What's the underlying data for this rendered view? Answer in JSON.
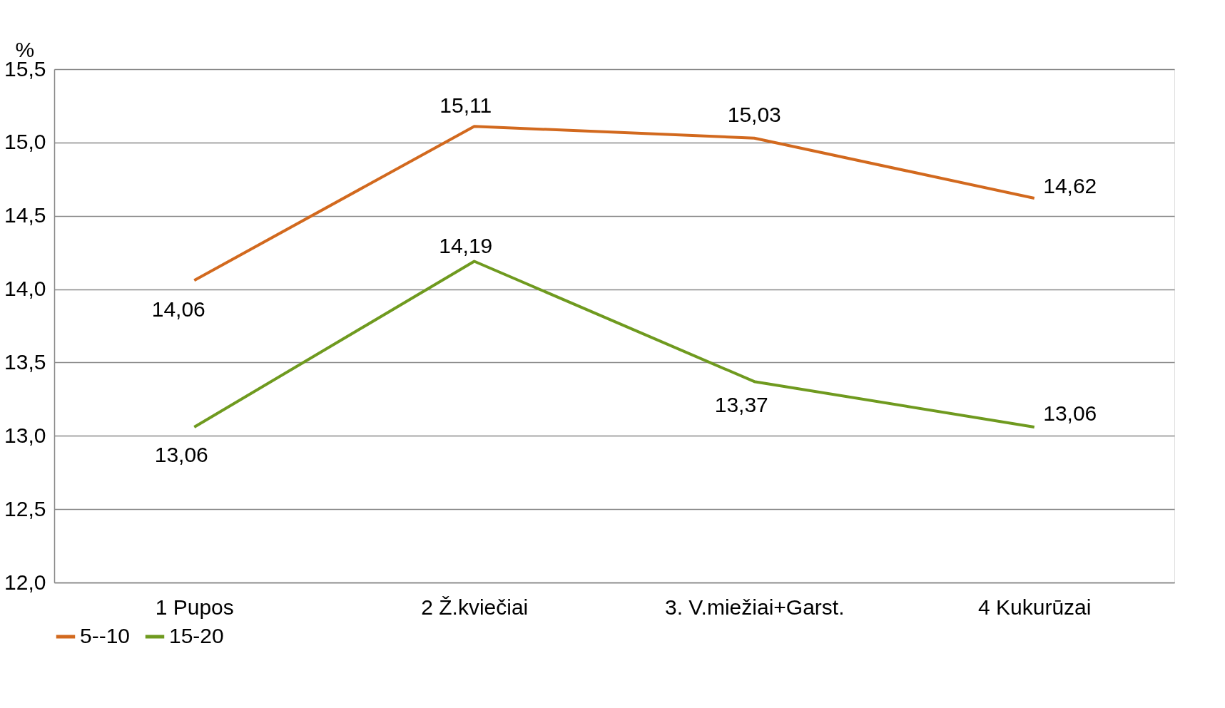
{
  "chart_data": {
    "type": "line",
    "ylabel": "%",
    "categories": [
      "1 Pupos",
      "2 Ž.kviečiai",
      "3. V.miežiai+Garst.",
      "4 Kukurūzai"
    ],
    "series": [
      {
        "name": "5--10",
        "color": "#d2691e",
        "values": [
          14.06,
          15.11,
          15.03,
          14.62
        ],
        "value_labels": [
          "14,06",
          "15,11",
          "15,03",
          "14,62"
        ]
      },
      {
        "name": "15-20",
        "color": "#6f9a1f",
        "values": [
          13.06,
          14.19,
          13.37,
          13.06
        ],
        "value_labels": [
          "13,06",
          "14,19",
          "13,37",
          "13,06"
        ]
      }
    ],
    "ylim": [
      12.0,
      15.5
    ],
    "yticks": [
      {
        "value": 12.0,
        "label": "12,0"
      },
      {
        "value": 12.5,
        "label": "12,5"
      },
      {
        "value": 13.0,
        "label": "13,0"
      },
      {
        "value": 13.5,
        "label": "13,5"
      },
      {
        "value": 14.0,
        "label": "14,0"
      },
      {
        "value": 14.5,
        "label": "14,5"
      },
      {
        "value": 15.0,
        "label": "15,0"
      },
      {
        "value": 15.5,
        "label": "15,5"
      }
    ],
    "grid": "y",
    "legend": "bottom",
    "marker": "none",
    "line_style": "solid"
  }
}
